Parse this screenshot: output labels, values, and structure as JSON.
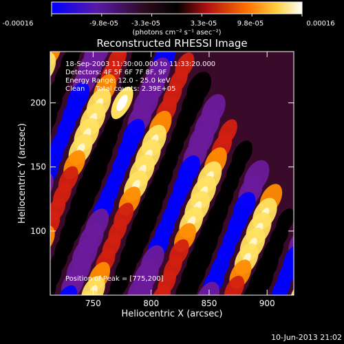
{
  "colorbar": {
    "ticks": [
      "-0.00016",
      "-9.8e-05",
      "-3.3e-05",
      "3.3e-05",
      "9.8e-05",
      "0.00016"
    ],
    "unit_label": "(photons cm⁻² s⁻¹ asec⁻²)"
  },
  "chart_data": {
    "type": "heatmap",
    "title": "Reconstructed RHESSI Image",
    "xlabel": "Heliocentric X (arcsec)",
    "ylabel": "Heliocentric Y (arcsec)",
    "xlim": [
      713,
      923
    ],
    "ylim": [
      50,
      240
    ],
    "x_ticks": [
      750,
      800,
      850,
      900
    ],
    "y_ticks": [
      100,
      150,
      200
    ],
    "value_range": [
      -0.00016,
      0.00016
    ],
    "colormap": [
      "#0000ff",
      "#6a1a9a",
      "#000000",
      "#d22010",
      "#ff8c00",
      "#ffe060",
      "#ffffff"
    ],
    "peak": {
      "x": 775,
      "y": 200
    },
    "annotations": [
      "18-Sep-2003 11:30:00.000 to 11:33:20.000",
      "Detectors: 4F 5F 6F 7F 8F, 9F",
      "Energy Range: 12.0 - 25.0 keV",
      "Clean     Total counts: 2.39E+05",
      "Position of Peak = [775,200]"
    ]
  },
  "timestamp": "10-Jun-2013 21:02"
}
